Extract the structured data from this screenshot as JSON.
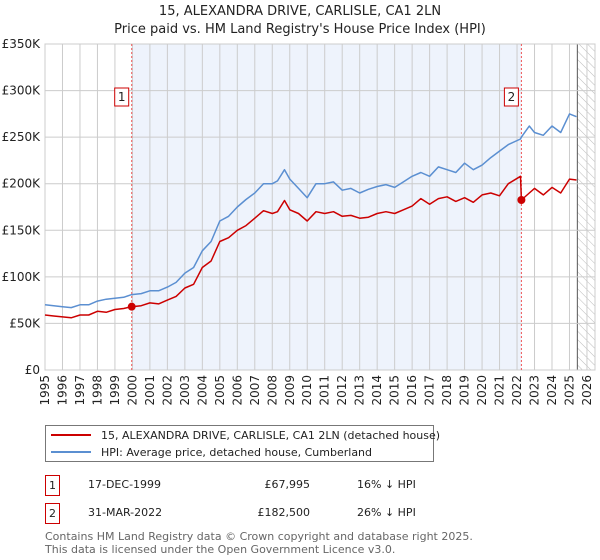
{
  "colors": {
    "property": "#cc0000",
    "hpi": "#5b8fd1",
    "shade": "#eef3fc",
    "grid": "#cccccc"
  },
  "chart_data": {
    "type": "line",
    "title": "15, ALEXANDRA DRIVE, CARLISLE, CA1 2LN",
    "subtitle": "Price paid vs. HM Land Registry's House Price Index (HPI)",
    "xlim": [
      1995,
      2026.46
    ],
    "ylim": [
      0,
      350000
    ],
    "x_ticks": [
      "1995",
      "1996",
      "1997",
      "1998",
      "1999",
      "2000",
      "2001",
      "2002",
      "2003",
      "2004",
      "2005",
      "2006",
      "2007",
      "2008",
      "2009",
      "2010",
      "2011",
      "2012",
      "2013",
      "2014",
      "2015",
      "2016",
      "2017",
      "2018",
      "2019",
      "2020",
      "2021",
      "2022",
      "2023",
      "2024",
      "2025",
      "2026"
    ],
    "y_ticks": [
      {
        "v": 0,
        "label": "£0"
      },
      {
        "v": 50000,
        "label": "£50K"
      },
      {
        "v": 100000,
        "label": "£100K"
      },
      {
        "v": 150000,
        "label": "£150K"
      },
      {
        "v": 200000,
        "label": "£200K"
      },
      {
        "v": 250000,
        "label": "£250K"
      },
      {
        "v": 300000,
        "label": "£300K"
      },
      {
        "v": 350000,
        "label": "£350K"
      }
    ],
    "shaded_range": [
      1999.96,
      2022.25
    ],
    "forecast_hatch_from": 2025.45,
    "grid": true,
    "series": [
      {
        "name": "15, ALEXANDRA DRIVE, CARLISLE, CA1 2LN (detached house)",
        "color": "#cc0000",
        "x": [
          1995,
          1995.5,
          1996,
          1996.5,
          1997,
          1997.5,
          1998,
          1998.5,
          1999,
          1999.5,
          1999.96,
          2000.5,
          2001,
          2001.5,
          2002,
          2002.5,
          2003,
          2003.5,
          2004,
          2004.5,
          2005,
          2005.5,
          2006,
          2006.5,
          2007,
          2007.5,
          2008,
          2008.3,
          2008.7,
          2009,
          2009.5,
          2010,
          2010.5,
          2011,
          2011.5,
          2012,
          2012.5,
          2013,
          2013.5,
          2014,
          2014.5,
          2015,
          2015.5,
          2016,
          2016.5,
          2017,
          2017.5,
          2018,
          2018.5,
          2019,
          2019.5,
          2020,
          2020.5,
          2021,
          2021.5,
          2022.2,
          2022.25,
          2022.7,
          2023,
          2023.5,
          2024,
          2024.5,
          2025,
          2025.4
        ],
        "y": [
          59000,
          58000,
          57000,
          56000,
          59000,
          59000,
          63000,
          62000,
          65000,
          66000,
          67995,
          69000,
          72000,
          71000,
          75000,
          79000,
          88000,
          92000,
          110000,
          117000,
          138000,
          142000,
          150000,
          155000,
          163000,
          171000,
          168000,
          170000,
          182000,
          172000,
          168000,
          160000,
          170000,
          168000,
          170000,
          165000,
          166000,
          163000,
          164000,
          168000,
          170000,
          168000,
          172000,
          176000,
          184000,
          178000,
          184000,
          186000,
          181000,
          185000,
          180000,
          188000,
          190000,
          187000,
          200000,
          208000,
          182500,
          190000,
          195000,
          188000,
          196000,
          190000,
          205000,
          204000
        ]
      },
      {
        "name": "HPI: Average price, detached house, Cumberland",
        "color": "#5b8fd1",
        "x": [
          1995,
          1995.5,
          1996,
          1996.5,
          1997,
          1997.5,
          1998,
          1998.5,
          1999,
          1999.5,
          1999.96,
          2000.5,
          2001,
          2001.5,
          2002,
          2002.5,
          2003,
          2003.5,
          2004,
          2004.5,
          2005,
          2005.5,
          2006,
          2006.5,
          2007,
          2007.5,
          2008,
          2008.3,
          2008.7,
          2009,
          2009.5,
          2010,
          2010.5,
          2011,
          2011.5,
          2012,
          2012.5,
          2013,
          2013.5,
          2014,
          2014.5,
          2015,
          2015.5,
          2016,
          2016.5,
          2017,
          2017.5,
          2018,
          2018.5,
          2019,
          2019.5,
          2020,
          2020.5,
          2021,
          2021.5,
          2022.2,
          2022.25,
          2022.7,
          2023,
          2023.5,
          2024,
          2024.5,
          2025,
          2025.4
        ],
        "y": [
          70000,
          69000,
          68000,
          67000,
          70000,
          70000,
          74000,
          76000,
          77000,
          78000,
          81000,
          82000,
          85000,
          85000,
          89000,
          94000,
          104000,
          110000,
          128000,
          138000,
          160000,
          165000,
          175000,
          183000,
          190000,
          200000,
          200000,
          203000,
          215000,
          205000,
          195000,
          185000,
          200000,
          200000,
          202000,
          193000,
          195000,
          190000,
          194000,
          197000,
          199000,
          196000,
          202000,
          208000,
          212000,
          208000,
          218000,
          215000,
          212000,
          222000,
          215000,
          220000,
          228000,
          235000,
          242000,
          248000,
          250000,
          262000,
          255000,
          252000,
          262000,
          255000,
          275000,
          272000
        ]
      }
    ],
    "annotations": [
      {
        "label": "1",
        "x": 1999.96,
        "y": 67995
      },
      {
        "label": "2",
        "x": 2022.25,
        "y": 182500
      }
    ]
  },
  "legend": {
    "property": "15, ALEXANDRA DRIVE, CARLISLE, CA1 2LN (detached house)",
    "hpi": "HPI: Average price, detached house, Cumberland"
  },
  "transactions": [
    {
      "num": "1",
      "date": "17-DEC-1999",
      "price": "£67,995",
      "hpi": "16% ↓ HPI"
    },
    {
      "num": "2",
      "date": "31-MAR-2022",
      "price": "£182,500",
      "hpi": "26% ↓ HPI"
    }
  ],
  "footer": {
    "line1": "Contains HM Land Registry data © Crown copyright and database right 2025.",
    "line2": "This data is licensed under the Open Government Licence v3.0."
  }
}
